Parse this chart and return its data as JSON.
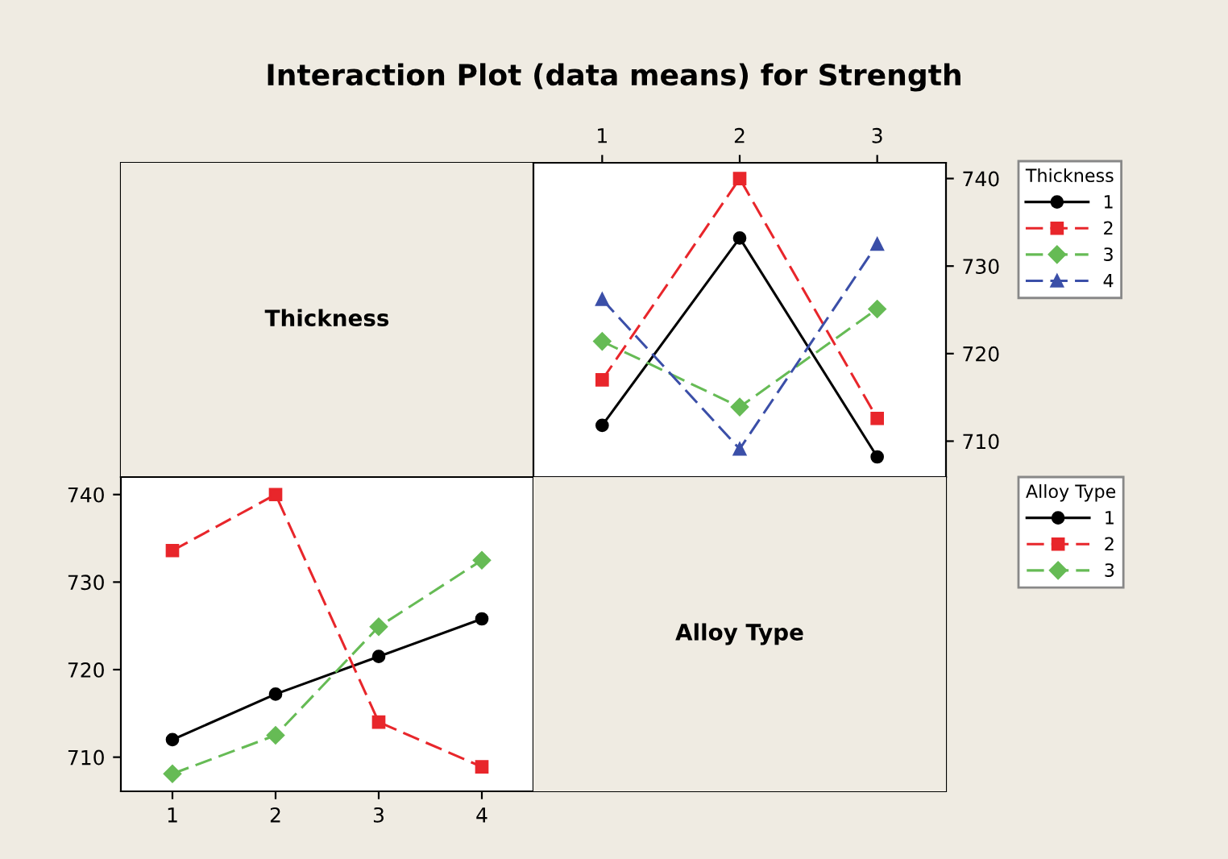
{
  "chart_data": [
    {
      "type": "other",
      "title": "Interaction Plot (data means) for Strength",
      "annotations": [
        "Thickness"
      ]
    },
    {
      "type": "line",
      "categories": [
        "1",
        "2",
        "3"
      ],
      "ylim": [
        705.9,
        741.8
      ],
      "yticks": [
        710,
        720,
        730,
        740
      ],
      "legend": "right",
      "legend_title": "Thickness",
      "grid": false,
      "series": [
        {
          "name": "1",
          "color": "#000000",
          "marker": "circle",
          "line_style": "solid",
          "values": [
            711.8,
            733.2,
            708.2
          ]
        },
        {
          "name": "2",
          "color": "#e8262b",
          "marker": "square",
          "line_style": "dashed",
          "values": [
            717.0,
            740.0,
            712.6
          ]
        },
        {
          "name": "3",
          "color": "#66bb55",
          "marker": "diamond",
          "line_style": "dashed",
          "values": [
            721.4,
            713.9,
            725.1
          ]
        },
        {
          "name": "4",
          "color": "#3b4fa8",
          "marker": "triangle",
          "line_style": "dashed",
          "values": [
            726.2,
            709.1,
            732.5
          ]
        }
      ]
    },
    {
      "type": "line",
      "categories": [
        "1",
        "2",
        "3",
        "4"
      ],
      "ylim": [
        706.1,
        742.0
      ],
      "yticks": [
        710,
        720,
        730,
        740
      ],
      "legend": "right",
      "legend_title": "Alloy Type",
      "grid": false,
      "series": [
        {
          "name": "1",
          "color": "#000000",
          "marker": "circle",
          "line_style": "solid",
          "values": [
            712.0,
            717.2,
            721.5,
            725.8
          ]
        },
        {
          "name": "2",
          "color": "#e8262b",
          "marker": "square",
          "line_style": "dashed",
          "values": [
            733.6,
            740.0,
            714.0,
            708.9
          ]
        },
        {
          "name": "3",
          "color": "#66bb55",
          "marker": "diamond",
          "line_style": "dashed",
          "values": [
            708.1,
            712.5,
            724.9,
            732.5
          ]
        }
      ]
    },
    {
      "type": "other",
      "annotations": [
        "Alloy Type"
      ]
    }
  ]
}
